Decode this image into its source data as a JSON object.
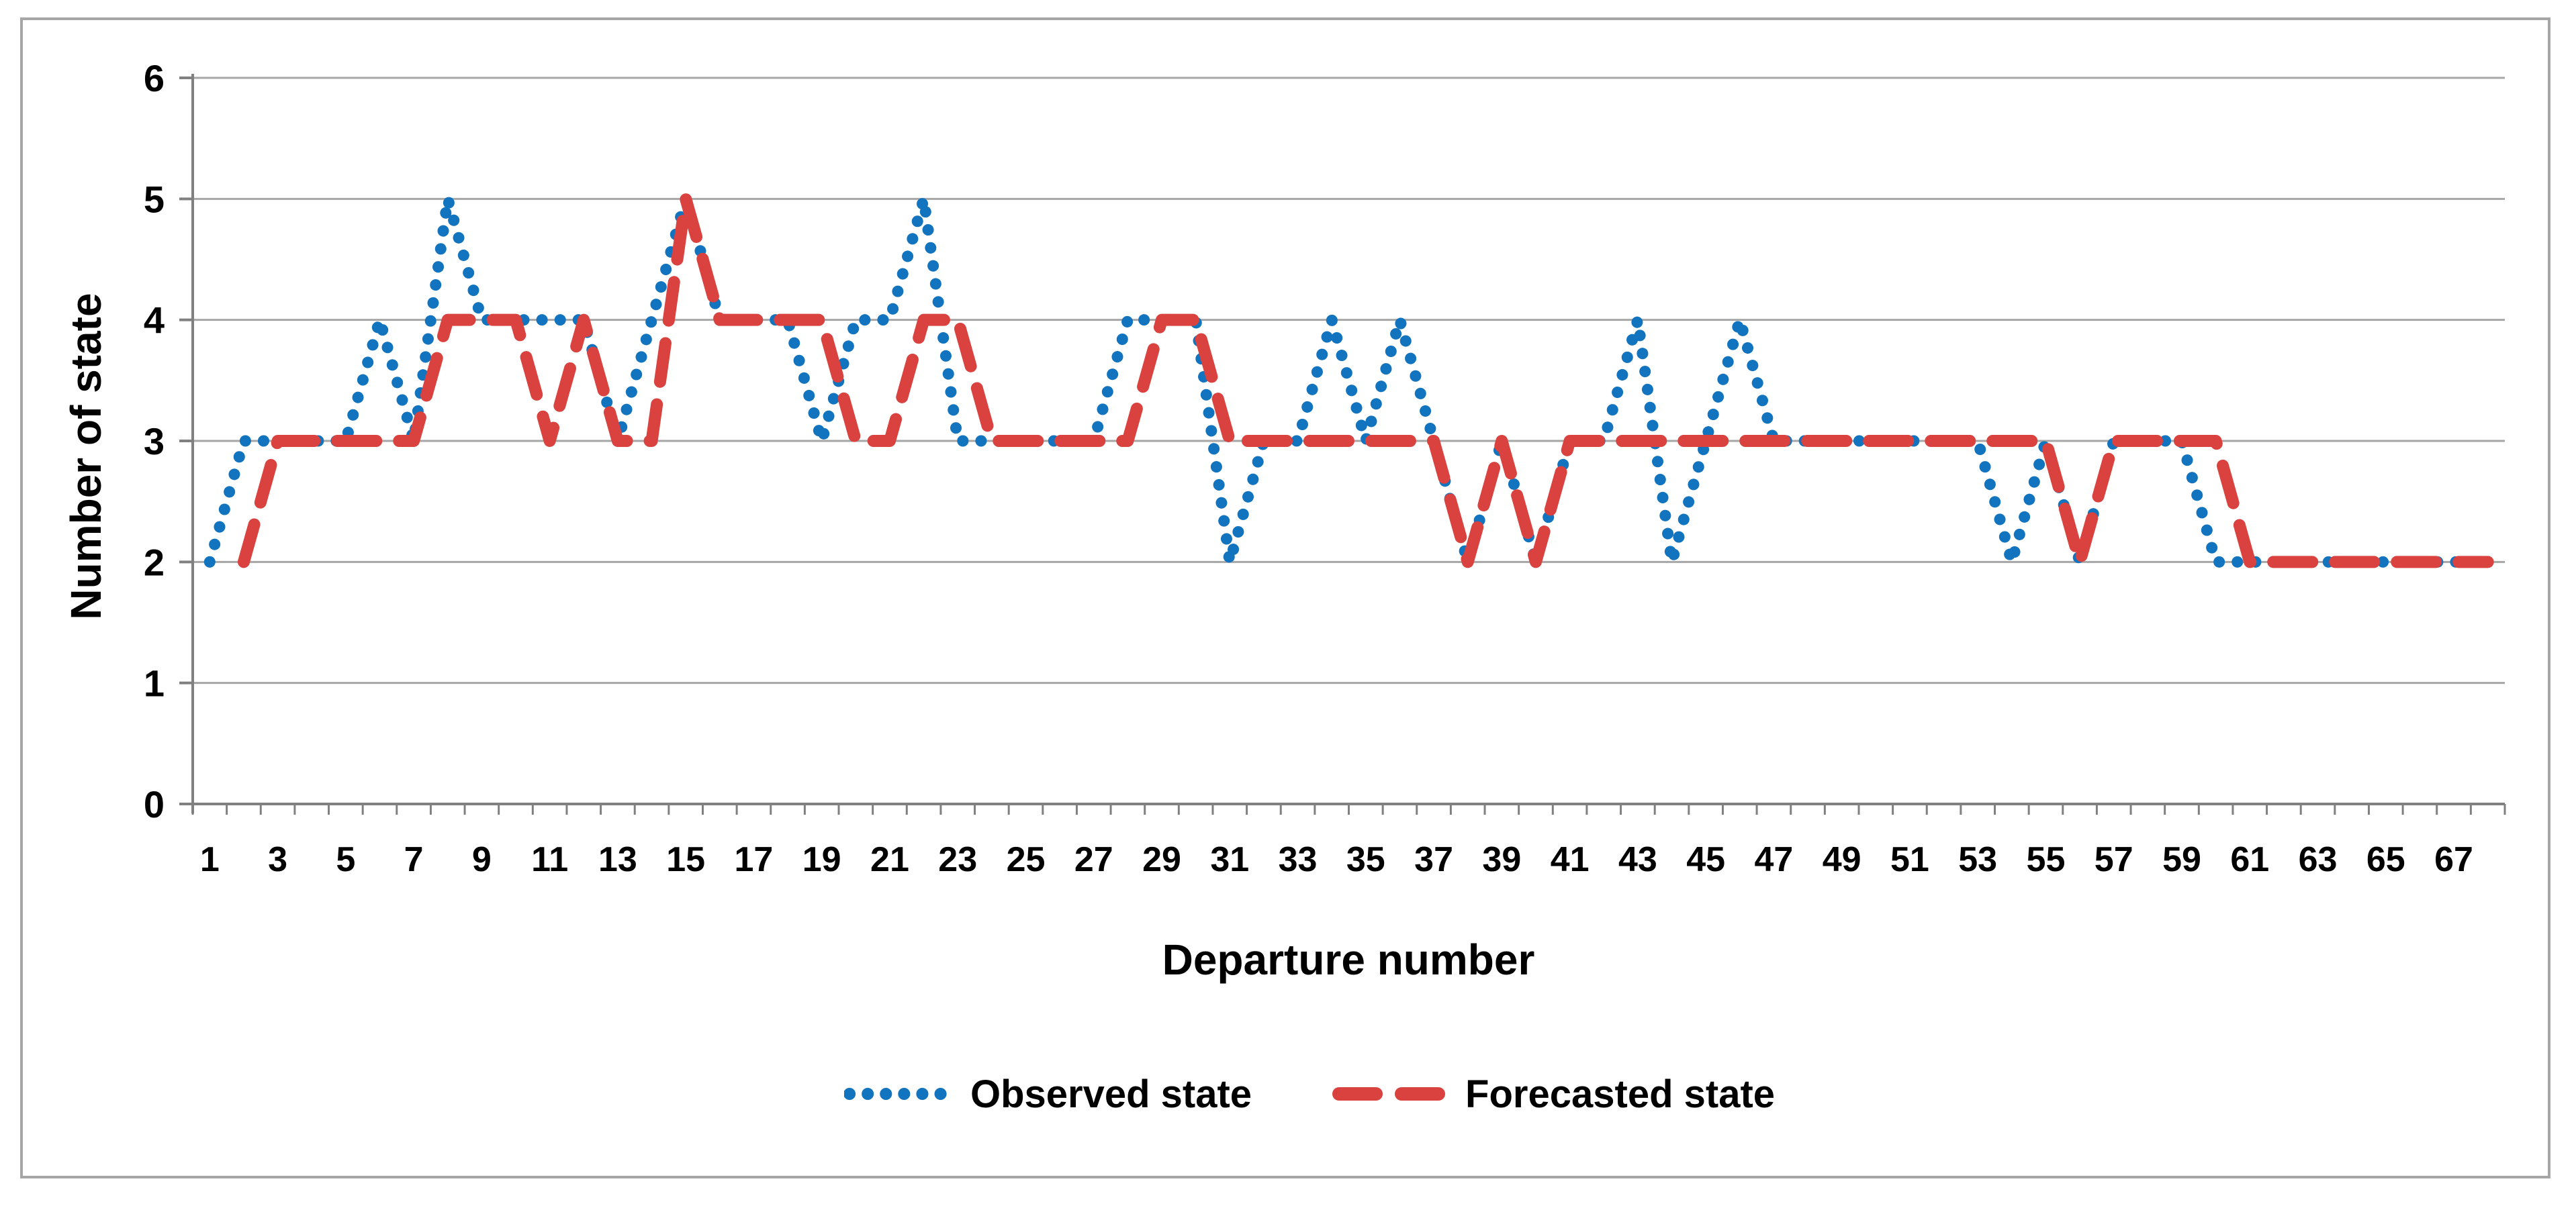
{
  "figure": {
    "background": "#ffffff",
    "frame_color": "#a6a6a6",
    "gridline_color": "#a6a6a6",
    "axis_line_color": "#808080",
    "text_color": "#000000"
  },
  "chart_data": {
    "type": "line",
    "title": "",
    "xlabel": "Departure number",
    "ylabel": "Number of state",
    "ylim": [
      0,
      6
    ],
    "y_ticks": [
      0,
      1,
      2,
      3,
      4,
      5,
      6
    ],
    "x_tick_labels": [
      1,
      3,
      5,
      7,
      9,
      11,
      13,
      15,
      17,
      19,
      21,
      23,
      25,
      27,
      29,
      31,
      33,
      35,
      37,
      39,
      41,
      43,
      45,
      47,
      49,
      51,
      53,
      55,
      57,
      59,
      61,
      63,
      65,
      67
    ],
    "grid": "horizontal",
    "legend_position": "bottom-center",
    "x": [
      1,
      2,
      3,
      4,
      5,
      6,
      7,
      8,
      9,
      10,
      11,
      12,
      13,
      14,
      15,
      16,
      17,
      18,
      19,
      20,
      21,
      22,
      23,
      24,
      25,
      26,
      27,
      28,
      29,
      30,
      31,
      32,
      33,
      34,
      35,
      36,
      37,
      38,
      39,
      40,
      41,
      42,
      43,
      44,
      45,
      46,
      47,
      48,
      49,
      50,
      51,
      52,
      53,
      54,
      55,
      56,
      57,
      58,
      59,
      60,
      61,
      62,
      63,
      64,
      65,
      66,
      67,
      68
    ],
    "series": [
      {
        "name": "Observed state",
        "style": "dotted",
        "color": "#1273be",
        "values": [
          2,
          3,
          3,
          3,
          3,
          4,
          3,
          5,
          4,
          4,
          4,
          4,
          3,
          4,
          5,
          4,
          4,
          4,
          3,
          4,
          4,
          5,
          3,
          3,
          3,
          3,
          3,
          4,
          4,
          4,
          2,
          3,
          3,
          4,
          3,
          4,
          3,
          2,
          3,
          2,
          3,
          3,
          4,
          2,
          3,
          4,
          3,
          3,
          3,
          3,
          3,
          3,
          3,
          2,
          3,
          2,
          3,
          3,
          3,
          2,
          2,
          2,
          2,
          2,
          2,
          2,
          2,
          2
        ]
      },
      {
        "name": "Forecasted state",
        "style": "dashed",
        "color": "#d9423e",
        "values": [
          null,
          2,
          3,
          3,
          3,
          3,
          3,
          4,
          4,
          4,
          3,
          4,
          3,
          3,
          5,
          4,
          4,
          4,
          4,
          3,
          3,
          4,
          4,
          3,
          3,
          3,
          3,
          3,
          4,
          4,
          3,
          3,
          3,
          3,
          3,
          3,
          3,
          2,
          3,
          2,
          3,
          3,
          3,
          3,
          3,
          3,
          3,
          3,
          3,
          3,
          3,
          3,
          3,
          3,
          3,
          2,
          3,
          3,
          3,
          3,
          2,
          2,
          2,
          2,
          2,
          2,
          2,
          2
        ]
      }
    ]
  },
  "legend": {
    "items": [
      {
        "label": "Observed state"
      },
      {
        "label": "Forecasted state"
      }
    ]
  }
}
